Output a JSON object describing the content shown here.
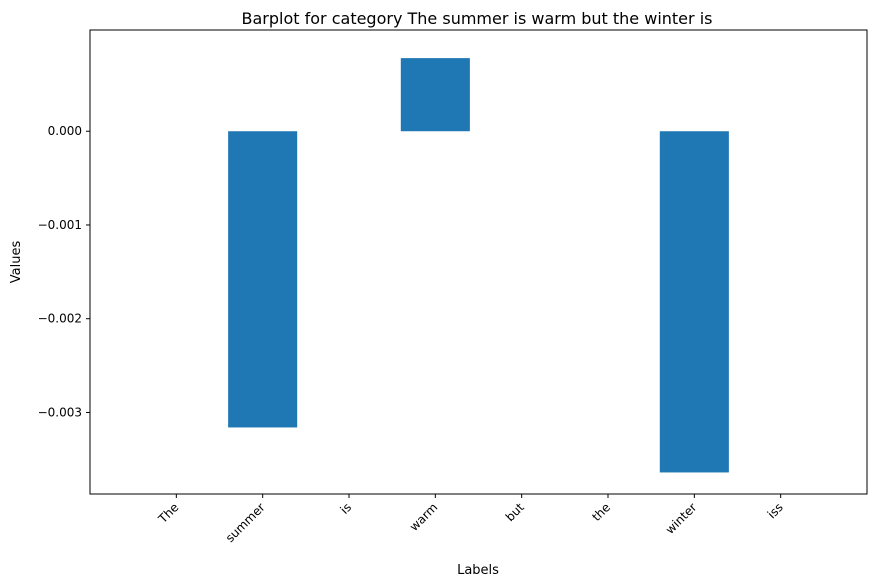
{
  "chart_data": {
    "type": "bar",
    "title": "Barplot for category The summer is warm but the winter is",
    "xlabel": "Labels",
    "ylabel": "Values",
    "categories": [
      "The",
      "summer",
      "is",
      "warm",
      "but",
      "the",
      "winter",
      "iss"
    ],
    "values": [
      0,
      -0.00316,
      0,
      0.00078,
      0,
      0,
      -0.00364,
      0
    ],
    "ylim": [
      -0.00387,
      0.00108
    ],
    "yticks": [
      0.0,
      -0.001,
      -0.002,
      -0.003
    ],
    "ytick_labels": [
      "0.000",
      "−0.001",
      "−0.002",
      "−0.003"
    ],
    "grid": false,
    "bar_color": "#1f77b4"
  }
}
